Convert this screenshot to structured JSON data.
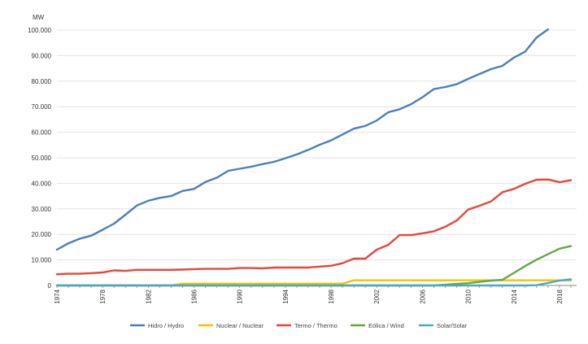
{
  "chart_data": {
    "type": "line",
    "ylabel": "MW",
    "ylim": [
      0,
      100000
    ],
    "yticks": [
      0,
      10000,
      20000,
      30000,
      40000,
      50000,
      60000,
      70000,
      80000,
      90000,
      100000
    ],
    "ytick_labels": [
      "0",
      "10.000",
      "20.000",
      "30.000",
      "40.000",
      "50.000",
      "60.000",
      "70.000",
      "80.000",
      "90.000",
      "100.000"
    ],
    "x": [
      1974,
      1975,
      1976,
      1977,
      1978,
      1979,
      1980,
      1981,
      1982,
      1983,
      1984,
      1985,
      1986,
      1987,
      1988,
      1989,
      1990,
      1991,
      1992,
      1993,
      1994,
      1995,
      1996,
      1997,
      1998,
      1999,
      2000,
      2001,
      2002,
      2003,
      2004,
      2005,
      2006,
      2007,
      2008,
      2009,
      2010,
      2011,
      2012,
      2013,
      2014,
      2015,
      2016,
      2017,
      2018,
      2019
    ],
    "xticks": [
      1974,
      1978,
      1982,
      1986,
      1990,
      1994,
      1998,
      2002,
      2006,
      2010,
      2014,
      2018
    ],
    "xtick_labels": [
      "1974",
      "1978",
      "1982",
      "1986",
      "1990",
      "1994",
      "1998",
      "2002",
      "2006",
      "2010",
      "2014",
      "2018"
    ],
    "grid": "horizontal",
    "legend_position": "bottom",
    "series": [
      {
        "name": "Hidro / Hydro",
        "color": "#4a7ebb",
        "values": [
          14000,
          16500,
          18300,
          19500,
          21800,
          24200,
          27700,
          31300,
          33200,
          34300,
          35000,
          37000,
          37800,
          40500,
          42200,
          44900,
          45700,
          46500,
          47500,
          48400,
          49800,
          51300,
          53100,
          55100,
          56800,
          59100,
          61400,
          62500,
          64600,
          67800,
          69000,
          71000,
          73700,
          76900,
          77700,
          78800,
          80900,
          82800,
          84700,
          86000,
          89200,
          91600,
          97100,
          100300,
          null,
          null
        ]
      },
      {
        "name": "Nuclear / Nuclear",
        "color": "#f2c400",
        "values": [
          0,
          0,
          0,
          0,
          0,
          0,
          0,
          0,
          0,
          0,
          0,
          700,
          700,
          700,
          700,
          700,
          700,
          700,
          700,
          700,
          700,
          700,
          700,
          700,
          700,
          700,
          2000,
          2000,
          2000,
          2000,
          2000,
          2000,
          2000,
          2000,
          2000,
          2000,
          2000,
          2000,
          2000,
          2000,
          2000,
          2000,
          2000,
          2000,
          2000,
          2000
        ]
      },
      {
        "name": "Termo / Thermo",
        "color": "#e8453c",
        "values": [
          4400,
          4600,
          4600,
          4800,
          5100,
          5900,
          5700,
          6100,
          6100,
          6100,
          6100,
          6200,
          6400,
          6500,
          6500,
          6500,
          6800,
          6800,
          6700,
          7000,
          7000,
          7000,
          7000,
          7400,
          7700,
          8700,
          10500,
          10500,
          14000,
          15900,
          19700,
          19700,
          20400,
          21200,
          23000,
          25400,
          29700,
          31200,
          32900,
          36500,
          37800,
          39800,
          41400,
          41500,
          40400,
          41200
        ]
      },
      {
        "name": "Eólica / Wind",
        "color": "#62a845",
        "values": [
          0,
          0,
          0,
          0,
          0,
          0,
          0,
          0,
          0,
          0,
          0,
          0,
          0,
          0,
          0,
          0,
          0,
          0,
          0,
          0,
          0,
          0,
          0,
          0,
          0,
          0,
          0,
          0,
          0,
          0,
          0,
          0,
          0,
          0,
          300,
          600,
          900,
          1400,
          1900,
          2200,
          4900,
          7600,
          10100,
          12300,
          14400,
          15400
        ]
      },
      {
        "name": "Solar/Solar",
        "color": "#4aa9c8",
        "values": [
          0,
          0,
          0,
          0,
          0,
          0,
          0,
          0,
          0,
          0,
          0,
          0,
          0,
          0,
          0,
          0,
          0,
          0,
          0,
          0,
          0,
          0,
          0,
          0,
          0,
          0,
          0,
          0,
          0,
          0,
          0,
          0,
          0,
          0,
          0,
          0,
          0,
          0,
          0,
          0,
          0,
          0,
          100,
          1000,
          1900,
          2400
        ]
      }
    ]
  }
}
